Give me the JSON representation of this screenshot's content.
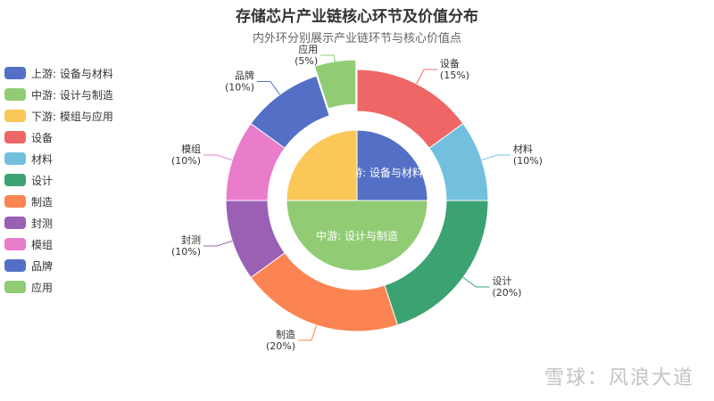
{
  "chart_data": {
    "type": "pie",
    "title": "存储芯片产业链核心环节及价值分布",
    "subtitle": "内外环分别展示产业链环节与核心价值点",
    "legend_position": "left",
    "inner": [
      {
        "name": "上游: 设备与材料",
        "value": 25,
        "color": "#5470c6"
      },
      {
        "name": "中游: 设计与制造",
        "value": 50,
        "color": "#91cc75"
      },
      {
        "name": "下游: 模组与应用",
        "value": 25,
        "color": "#fac858"
      }
    ],
    "outer": [
      {
        "name": "设备",
        "value": 15,
        "label": "(15%)",
        "color": "#ee6666"
      },
      {
        "name": "材料",
        "value": 10,
        "label": "(10%)",
        "color": "#73c0de"
      },
      {
        "name": "设计",
        "value": 20,
        "label": "(20%)",
        "color": "#3ba272"
      },
      {
        "name": "制造",
        "value": 20,
        "label": "(20%)",
        "color": "#fc8452"
      },
      {
        "name": "封测",
        "value": 10,
        "label": "(10%)",
        "color": "#9a60b4"
      },
      {
        "name": "模组",
        "value": 10,
        "label": "(10%)",
        "color": "#ea7ccc"
      },
      {
        "name": "品牌",
        "value": 10,
        "label": "(10%)",
        "color": "#5470c6"
      },
      {
        "name": "应用",
        "value": 5,
        "label": "(5%)",
        "color": "#91cc75"
      }
    ]
  },
  "watermark": "雪球：风浪大道"
}
